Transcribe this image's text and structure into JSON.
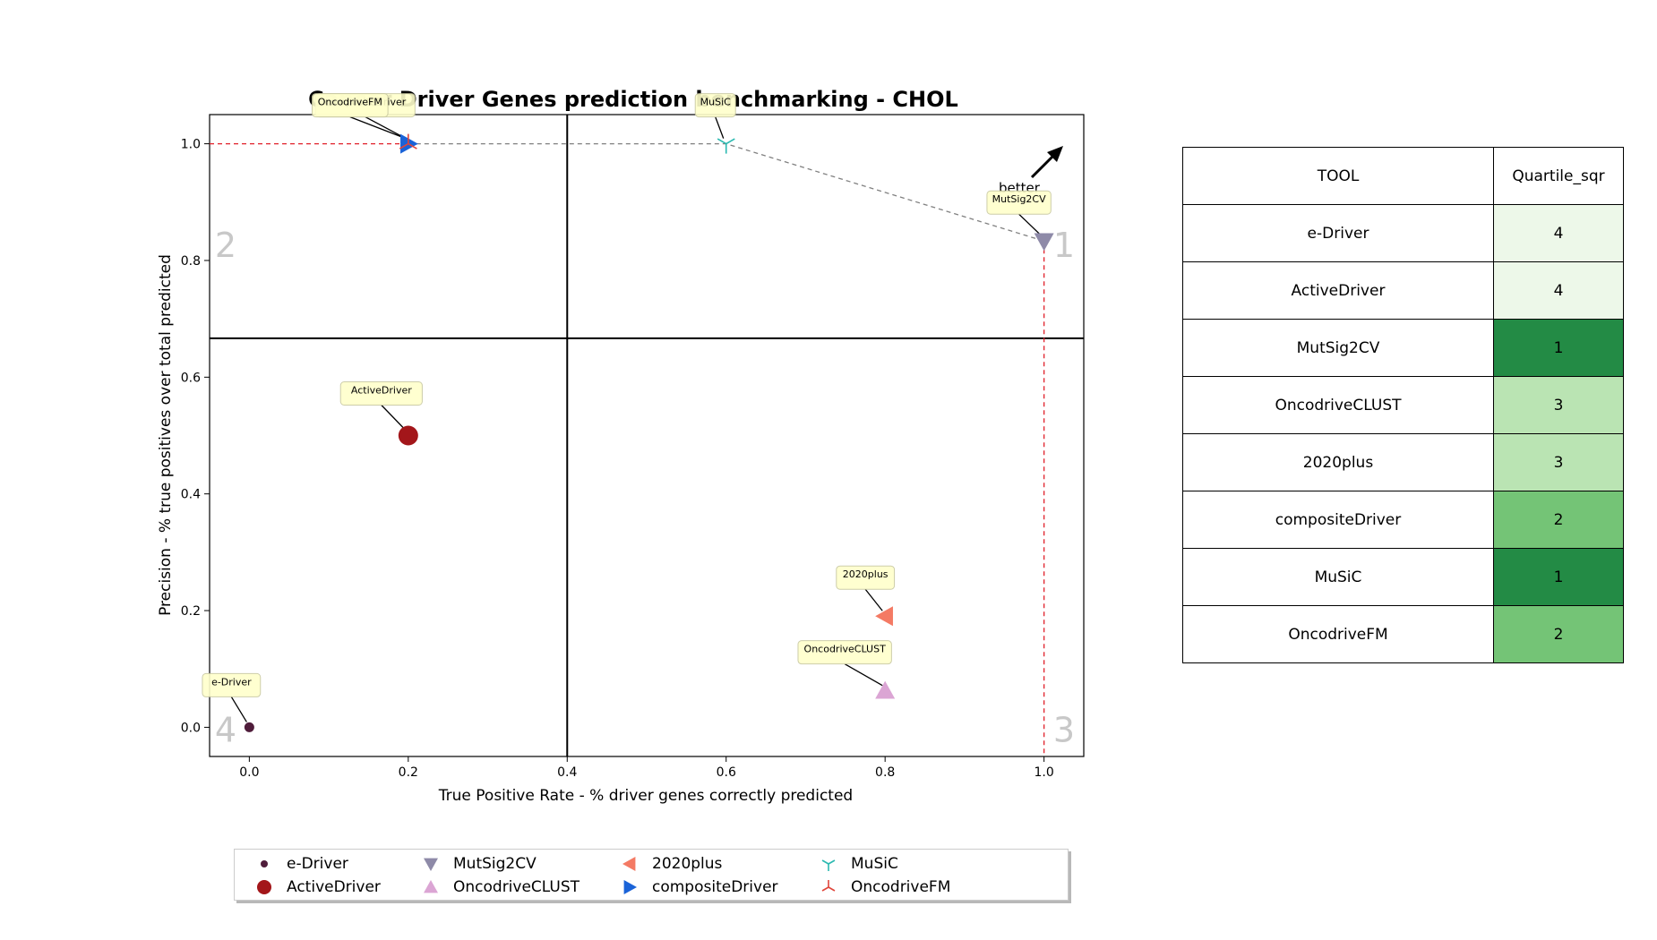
{
  "chart_data": {
    "type": "scatter",
    "title": "Cancer Driver Genes prediction benchmarking - CHOL",
    "xlabel": "True Positive Rate - % driver genes correctly predicted",
    "ylabel": "Precision - % true positives over total predicted",
    "xlim": [
      -0.05,
      1.05
    ],
    "ylim": [
      -0.05,
      1.05
    ],
    "xticks": [
      "0.0",
      "0.2",
      "0.4",
      "0.6",
      "0.8",
      "1.0"
    ],
    "yticks": [
      "0.0",
      "0.2",
      "0.4",
      "0.6",
      "0.8",
      "1.0"
    ],
    "grid": false,
    "legend_position": "bottom",
    "quadrant_split": {
      "x": 0.4,
      "y": 0.6667
    },
    "quadrant_labels": [
      "1",
      "2",
      "3",
      "4"
    ],
    "better_label": "better",
    "series": [
      {
        "name": "e-Driver",
        "x": 0.0,
        "y": 0.0,
        "marker": "o-small",
        "color": "#4f1c3a"
      },
      {
        "name": "ActiveDriver",
        "x": 0.2,
        "y": 0.5,
        "marker": "o",
        "color": "#a3161a"
      },
      {
        "name": "MutSig2CV",
        "x": 1.0,
        "y": 0.8333,
        "marker": "v",
        "color": "#8e8aa8"
      },
      {
        "name": "OncodriveCLUST",
        "x": 0.8,
        "y": 0.0625,
        "marker": "^",
        "color": "#dba5d4"
      },
      {
        "name": "2020plus",
        "x": 0.8,
        "y": 0.1905,
        "marker": "<",
        "color": "#f47a64"
      },
      {
        "name": "compositeDriver",
        "x": 0.2,
        "y": 1.0,
        "marker": ">",
        "color": "#1a63d8"
      },
      {
        "name": "MuSiC",
        "x": 0.6,
        "y": 1.0,
        "marker": "tri_down",
        "color": "#2ab9b0"
      },
      {
        "name": "OncodriveFM",
        "x": 0.2,
        "y": 1.0,
        "marker": "tri_up",
        "color": "#e0453a"
      }
    ],
    "pareto_front": [
      {
        "x": 0.2,
        "y": 1.0
      },
      {
        "x": 0.6,
        "y": 1.0
      },
      {
        "x": 1.0,
        "y": 0.8333
      }
    ],
    "annotations": [
      {
        "text": "e-Driver",
        "x": 0.0,
        "y": 0.0
      },
      {
        "text": "ActiveDriver",
        "x": 0.2,
        "y": 0.5
      },
      {
        "text": "MutSig2CV",
        "x": 1.0,
        "y": 0.8333
      },
      {
        "text": "OncodriveCLUST",
        "x": 0.8,
        "y": 0.0625
      },
      {
        "text": "2020plus",
        "x": 0.8,
        "y": 0.1905
      },
      {
        "text": "compositeDriver",
        "x": 0.2,
        "y": 1.0
      },
      {
        "text": "MuSiC",
        "x": 0.6,
        "y": 1.0
      },
      {
        "text": "OncodriveFM",
        "x": 0.2,
        "y": 1.0
      }
    ]
  },
  "table": {
    "headers": [
      "TOOL",
      "Quartile_sqr"
    ],
    "rows": [
      {
        "tool": "e-Driver",
        "quartile": "4",
        "color": "#edf8e9"
      },
      {
        "tool": "ActiveDriver",
        "quartile": "4",
        "color": "#edf8e9"
      },
      {
        "tool": "MutSig2CV",
        "quartile": "1",
        "color": "#238b45"
      },
      {
        "tool": "OncodriveCLUST",
        "quartile": "3",
        "color": "#bae4b3"
      },
      {
        "tool": "2020plus",
        "quartile": "3",
        "color": "#bae4b3"
      },
      {
        "tool": "compositeDriver",
        "quartile": "2",
        "color": "#74c476"
      },
      {
        "tool": "MuSiC",
        "quartile": "1",
        "color": "#238b45"
      },
      {
        "tool": "OncodriveFM",
        "quartile": "2",
        "color": "#74c476"
      }
    ]
  }
}
